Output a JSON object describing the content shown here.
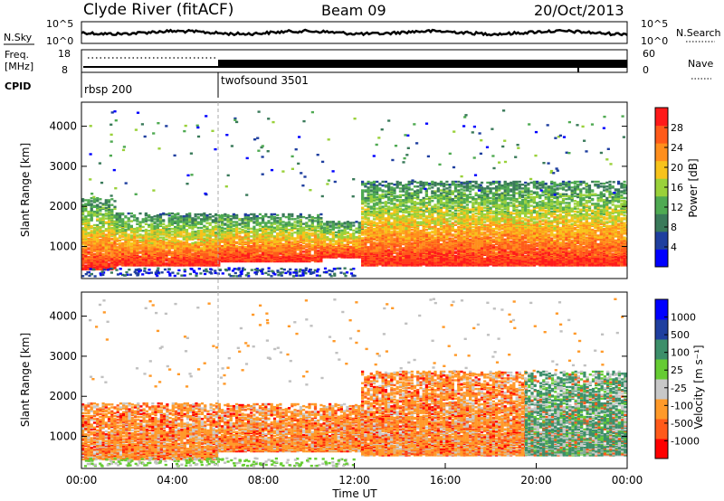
{
  "header": {
    "station": "Clyde River (fitACF)",
    "beam": "Beam 09",
    "date": "20/Oct/2013"
  },
  "noise_panel": {
    "left_label": "N.Sky",
    "right_label": "N.Search",
    "left_ticks": [
      "10^5",
      "10^0"
    ],
    "right_ticks": [
      "10^5",
      "10^0"
    ]
  },
  "freq_panel": {
    "left_label_line1": "Freq.",
    "left_label_line2": "[MHz]",
    "right_label": "Nave",
    "left_ticks": [
      "18",
      "8"
    ],
    "right_ticks": [
      "60",
      "0"
    ]
  },
  "cpid": {
    "label": "CPID",
    "modes": [
      {
        "name": "rbsp 200",
        "start_hour": 0
      },
      {
        "name": "twofsound 3501",
        "start_hour": 6
      }
    ]
  },
  "colors": {
    "power": [
      "#0000ff",
      "#1f3f9f",
      "#3a7a5a",
      "#4faa52",
      "#9ad13a",
      "#f7c31b",
      "#ff8f1d",
      "#ff5a1a",
      "#ff1a1a"
    ],
    "velocity": [
      "#ff0000",
      "#ff5a1a",
      "#ff9a2a",
      "#c8c8c8",
      "#66cc33",
      "#3c8f6a",
      "#1f3f9f",
      "#0000ff"
    ],
    "ground_scatter": "#c0c0c0",
    "cpid_boundary": "#999999"
  },
  "chart_data": [
    {
      "type": "heatmap",
      "title": "",
      "xlabel": "",
      "ylabel": "Slant Range [km]",
      "xlim": [
        0,
        24
      ],
      "ylim": [
        200,
        4600
      ],
      "y_ticks": [
        "1000",
        "2000",
        "3000",
        "4000"
      ],
      "colorbar": {
        "label": "Power [dB]",
        "ticks": [
          "4",
          "8",
          "12",
          "16",
          "20",
          "24",
          "28"
        ],
        "range": [
          0,
          32
        ]
      },
      "scatter_regions": [
        {
          "t_start": 0.0,
          "t_end": 1.5,
          "range_km": [
            400,
            2200
          ],
          "level": "high"
        },
        {
          "t_start": 1.5,
          "t_end": 6.0,
          "range_km": [
            500,
            1800
          ],
          "level": "high"
        },
        {
          "t_start": 6.0,
          "t_end": 10.5,
          "range_km": [
            600,
            1800
          ],
          "level": "high"
        },
        {
          "t_start": 10.5,
          "t_end": 12.3,
          "range_km": [
            700,
            1600
          ],
          "level": "high"
        },
        {
          "t_start": 12.3,
          "t_end": 24.0,
          "range_km": [
            500,
            2600
          ],
          "level": "high"
        }
      ]
    },
    {
      "type": "heatmap",
      "title": "",
      "xlabel": "Time UT",
      "ylabel": "Slant Range [km]",
      "xlim": [
        0,
        24
      ],
      "ylim": [
        200,
        4600
      ],
      "x_ticks": [
        "00:00",
        "04:00",
        "08:00",
        "12:00",
        "16:00",
        "20:00",
        "00:00"
      ],
      "y_ticks": [
        "1000",
        "2000",
        "3000",
        "4000"
      ],
      "colorbar": {
        "label": "Velocity [m s⁻¹]",
        "ticks": [
          "1000",
          "500",
          "100",
          "25",
          "-25",
          "-100",
          "-500",
          "-1000"
        ]
      },
      "scatter_regions": [
        {
          "t_start": 0.0,
          "t_end": 6.0,
          "range_km": [
            400,
            1800
          ],
          "dominant": "negative"
        },
        {
          "t_start": 6.0,
          "t_end": 12.3,
          "range_km": [
            600,
            1800
          ],
          "dominant": "negative"
        },
        {
          "t_start": 12.3,
          "t_end": 19.5,
          "range_km": [
            500,
            2600
          ],
          "dominant": "negative"
        },
        {
          "t_start": 19.5,
          "t_end": 24.0,
          "range_km": [
            500,
            2600
          ],
          "dominant": "positive"
        }
      ]
    }
  ]
}
